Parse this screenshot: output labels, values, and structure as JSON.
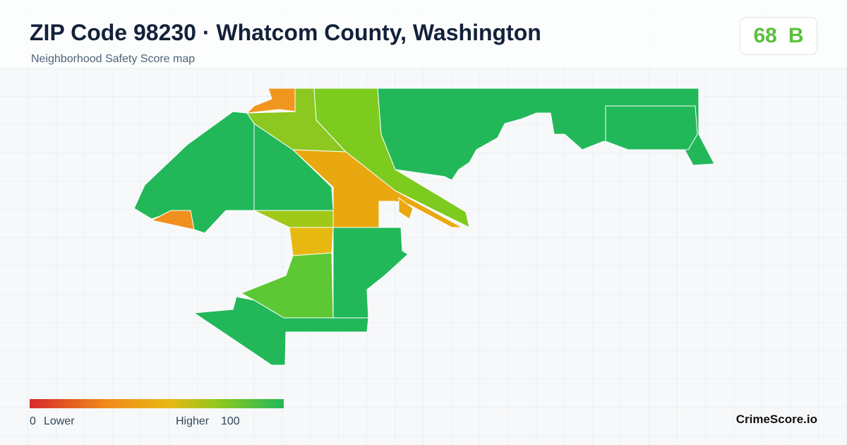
{
  "header": {
    "title": "ZIP Code 98230 · Whatcom County, Washington",
    "subtitle": "Neighborhood Safety Score map"
  },
  "score": {
    "value": 68,
    "grade": "B"
  },
  "legend": {
    "min": 0,
    "min_label": "Lower",
    "max_label": "Higher",
    "max": 100
  },
  "brand": "CrimeScore.io"
}
